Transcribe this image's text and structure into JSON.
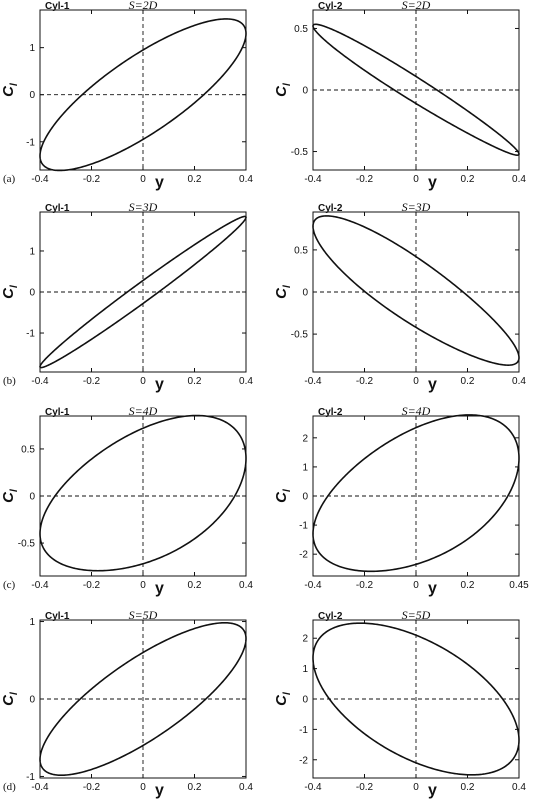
{
  "chart_data": [
    {
      "type": "line",
      "title": "Cyl-1",
      "subtitle": "S=2D",
      "row_tag": "(a)",
      "xlabel": "y",
      "ylabel": "C",
      "ylabel_sub": "l",
      "xlim": [
        -0.4,
        0.4
      ],
      "ylim": [
        -1.6,
        1.8
      ],
      "xticks": [
        "-0.4",
        "-0.2",
        "0",
        "0.2",
        "0.4"
      ],
      "yticks": [
        1,
        0,
        -1
      ],
      "series": [
        {
          "loop": {
            "amp": 0.4,
            "cx": 0,
            "cy": 0,
            "a": 1.3,
            "b": 0.95,
            "phi": 0.55,
            "k3": 0
          }
        }
      ]
    },
    {
      "type": "line",
      "title": "Cyl-2",
      "subtitle": "S=2D",
      "row_tag": "",
      "xlabel": "y",
      "ylabel": "C",
      "ylabel_sub": "l",
      "xlim": [
        -0.4,
        0.4
      ],
      "ylim": [
        -0.65,
        0.65
      ],
      "xticks": [
        "-0.4",
        "-0.2",
        "0",
        "0.2",
        "0.4"
      ],
      "yticks": [
        0.5,
        0,
        -0.5
      ],
      "series": [
        {
          "loop": {
            "amp": 0.4,
            "cx": 0,
            "cy": 0,
            "a": -0.52,
            "b": 0.11,
            "phi": 0.32,
            "k3": -0.1
          }
        }
      ]
    },
    {
      "type": "line",
      "title": "Cyl-1",
      "subtitle": "S=3D",
      "row_tag": "(b)",
      "xlabel": "y",
      "ylabel": "C",
      "ylabel_sub": "l",
      "xlim": [
        -0.4,
        0.4
      ],
      "ylim": [
        -1.95,
        1.95
      ],
      "xticks": [
        "-0.4",
        "-0.2",
        "0",
        "0.2",
        "0.4"
      ],
      "yticks": [
        1,
        0,
        -1
      ],
      "series": [
        {
          "loop": {
            "amp": 0.4,
            "cx": 0,
            "cy": 0,
            "a": 1.82,
            "b": 0.28,
            "phi": 0.18,
            "k3": 0
          }
        }
      ]
    },
    {
      "type": "line",
      "title": "Cyl-2",
      "subtitle": "S=3D",
      "row_tag": "",
      "xlabel": "y",
      "ylabel": "C",
      "ylabel_sub": "l",
      "xlim": [
        -0.4,
        0.4
      ],
      "ylim": [
        -0.95,
        0.95
      ],
      "xticks": [
        "-0.4",
        "-0.2",
        "0",
        "0.2",
        "0.4"
      ],
      "yticks": [
        0.5,
        0,
        -0.5
      ],
      "series": [
        {
          "loop": {
            "amp": 0.4,
            "cx": 0,
            "cy": 0,
            "a": -0.78,
            "b": 0.42,
            "phi": 0.5,
            "k3": -0.1
          }
        }
      ]
    },
    {
      "type": "line",
      "title": "Cyl-1",
      "subtitle": "S=4D",
      "row_tag": "(c)",
      "xlabel": "y",
      "ylabel": "C",
      "ylabel_sub": "l",
      "xlim": [
        -0.4,
        0.4
      ],
      "ylim": [
        -0.85,
        0.85
      ],
      "xticks": [
        "-0.4",
        "-0.2",
        "0",
        "0.2",
        "0.4"
      ],
      "yticks": [
        0.5,
        0,
        -0.5
      ],
      "series": [
        {
          "loop": {
            "amp": 0.4,
            "cx": 0,
            "cy": 0,
            "a": 0.4,
            "b": 0.72,
            "phi": 1.05,
            "k3": 0.1
          }
        }
      ]
    },
    {
      "type": "line",
      "title": "Cyl-2",
      "subtitle": "S=4D",
      "row_tag": "",
      "xlabel": "y",
      "ylabel": "C",
      "ylabel_sub": "l",
      "xlim": [
        -0.4,
        0.4
      ],
      "ylim": [
        -2.75,
        2.75
      ],
      "xticks": [
        "-0.4",
        "-0.2",
        "0",
        "0.2",
        "0.45"
      ],
      "yticks": [
        2,
        1,
        0,
        -1,
        -2
      ],
      "series": [
        {
          "loop": {
            "amp": 0.4,
            "cx": 0,
            "cy": 0,
            "a": 1.3,
            "b": 2.35,
            "phi": 1.05,
            "k3": 0.1
          }
        }
      ]
    },
    {
      "type": "line",
      "title": "Cyl-1",
      "subtitle": "S=5D",
      "row_tag": "(d)",
      "xlabel": "y",
      "ylabel": "C",
      "ylabel_sub": "l",
      "xlim": [
        -0.4,
        0.4
      ],
      "ylim": [
        -1.02,
        1.02
      ],
      "xticks": [
        "-0.4",
        "-0.2",
        "0",
        "0.2",
        "0.4"
      ],
      "yticks": [
        1,
        0,
        -1
      ],
      "series": [
        {
          "loop": {
            "amp": 0.4,
            "cx": 0,
            "cy": 0,
            "a": 0.78,
            "b": 0.6,
            "phi": 0.6,
            "k3": 0
          }
        }
      ]
    },
    {
      "type": "line",
      "title": "Cyl-2",
      "subtitle": "S=5D",
      "row_tag": "",
      "xlabel": "y",
      "ylabel": "C",
      "ylabel_sub": "l",
      "xlim": [
        -0.4,
        0.4
      ],
      "ylim": [
        -2.6,
        2.6
      ],
      "xticks": [
        "-0.4",
        "-0.2",
        "0",
        "0.2",
        "0.4"
      ],
      "yticks": [
        2,
        1,
        0,
        -1,
        -2
      ],
      "series": [
        {
          "loop": {
            "amp": 0.4,
            "cx": 0,
            "cy": 0,
            "a": -1.35,
            "b": 2.1,
            "phi": 1.15,
            "k3": 0
          }
        }
      ]
    }
  ]
}
